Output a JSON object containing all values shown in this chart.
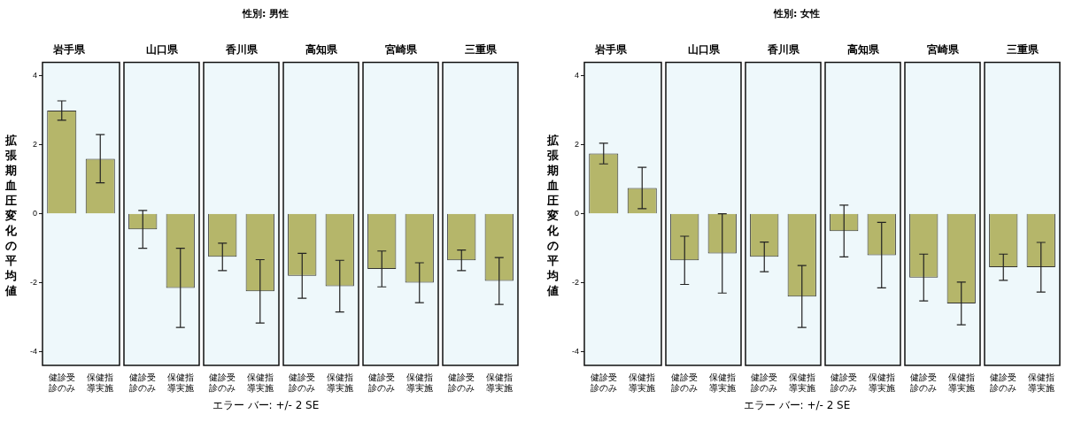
{
  "chart_data": [
    {
      "type": "bar",
      "title": "岩手県",
      "annotations": [
        "性別: 男性",
        "エラー バー: +/- 2 SE"
      ],
      "ylabel": "拡張期血圧変化の平均値",
      "categories": [
        "健診受診のみ",
        "保健指導実施"
      ],
      "values": [
        3.0,
        1.6
      ],
      "errors": [
        0.28,
        0.7
      ],
      "color": "#b5b66a",
      "ylim": [
        -4.4,
        4.4
      ],
      "yticks": [
        -4,
        -2,
        0,
        2,
        4
      ]
    },
    {
      "type": "bar",
      "title": "山口県",
      "categories": [
        "健診受診のみ",
        "保健指導実施"
      ],
      "values": [
        -0.45,
        -2.15
      ],
      "errors": [
        0.55,
        1.15
      ],
      "color": "#b5b66a",
      "ylim": [
        -4.4,
        4.4
      ],
      "yticks": [
        -4,
        -2,
        0,
        2,
        4
      ],
      "tick_labels": "x"
    },
    {
      "type": "bar",
      "title": "香川県",
      "categories": [
        "健診受診のみ",
        "保健指導実施"
      ],
      "values": [
        -1.25,
        -2.25
      ],
      "errors": [
        0.4,
        0.92
      ],
      "color": "#b5b66a",
      "ylim": [
        -4.4,
        4.4
      ],
      "yticks": [
        -4,
        -2,
        0,
        2,
        4
      ],
      "tick_labels": "x"
    },
    {
      "type": "bar",
      "title": "高知県",
      "categories": [
        "健診受診のみ",
        "保健指導実施"
      ],
      "values": [
        -1.8,
        -2.1
      ],
      "errors": [
        0.65,
        0.75
      ],
      "color": "#b5b66a",
      "ylim": [
        -4.4,
        4.4
      ],
      "yticks": [
        -4,
        -2,
        0,
        2,
        4
      ],
      "tick_labels": "x"
    },
    {
      "type": "bar",
      "title": "宮崎県",
      "categories": [
        "健診受診のみ",
        "保健指導実施"
      ],
      "values": [
        -1.6,
        -2.0
      ],
      "errors": [
        0.52,
        0.58
      ],
      "color": "#b5b66a",
      "ylim": [
        -4.4,
        4.4
      ],
      "yticks": [
        -4,
        -2,
        0,
        2,
        4
      ],
      "tick_labels": "x"
    },
    {
      "type": "bar",
      "title": "三重県",
      "categories": [
        "健診受診のみ",
        "保健指導実施"
      ],
      "values": [
        -1.35,
        -1.95
      ],
      "errors": [
        0.3,
        0.68
      ],
      "color": "#b5b66a",
      "ylim": [
        -4.4,
        4.4
      ],
      "yticks": [
        -4,
        -2,
        0,
        2,
        4
      ],
      "tick_labels": "x"
    },
    {
      "type": "bar",
      "title": "岩手県",
      "annotations": [
        "性別: 女性",
        "エラー バー: +/- 2 SE"
      ],
      "ylabel": "拡張期血圧変化の平均値",
      "categories": [
        "健診受診のみ",
        "保健指導実施"
      ],
      "values": [
        1.75,
        0.75
      ],
      "errors": [
        0.3,
        0.6
      ],
      "color": "#b5b66a",
      "ylim": [
        -4.4,
        4.4
      ],
      "yticks": [
        -4,
        -2,
        0,
        2,
        4
      ]
    },
    {
      "type": "bar",
      "title": "山口県",
      "categories": [
        "健診受診のみ",
        "保健指導実施"
      ],
      "values": [
        -1.35,
        -1.15
      ],
      "errors": [
        0.7,
        1.15
      ],
      "color": "#b5b66a",
      "ylim": [
        -4.4,
        4.4
      ],
      "yticks": [
        -4,
        -2,
        0,
        2,
        4
      ],
      "tick_labels": "x"
    },
    {
      "type": "bar",
      "title": "香川県",
      "categories": [
        "健診受診のみ",
        "保健指導実施"
      ],
      "values": [
        -1.25,
        -2.4
      ],
      "errors": [
        0.43,
        0.9
      ],
      "color": "#b5b66a",
      "ylim": [
        -4.4,
        4.4
      ],
      "yticks": [
        -4,
        -2,
        0,
        2,
        4
      ],
      "tick_labels": "x"
    },
    {
      "type": "bar",
      "title": "高知県",
      "categories": [
        "健診受診のみ",
        "保健指導実施"
      ],
      "values": [
        -0.5,
        -1.2
      ],
      "errors": [
        0.75,
        0.95
      ],
      "color": "#b5b66a",
      "ylim": [
        -4.4,
        4.4
      ],
      "yticks": [
        -4,
        -2,
        0,
        2,
        4
      ],
      "tick_labels": "x"
    },
    {
      "type": "bar",
      "title": "宮崎県",
      "categories": [
        "健診受診のみ",
        "保健指導実施"
      ],
      "values": [
        -1.85,
        -2.6
      ],
      "errors": [
        0.68,
        0.62
      ],
      "color": "#b5b66a",
      "ylim": [
        -4.4,
        4.4
      ],
      "yticks": [
        -4,
        -2,
        0,
        2,
        4
      ],
      "tick_labels": "x"
    },
    {
      "type": "bar",
      "title": "三重県",
      "categories": [
        "健診受診のみ",
        "保健指導実施"
      ],
      "values": [
        -1.55,
        -1.55
      ],
      "errors": [
        0.38,
        0.72
      ],
      "color": "#b5b66a",
      "ylim": [
        -4.4,
        4.4
      ],
      "yticks": [
        -4,
        -2,
        0,
        2,
        4
      ],
      "tick_labels": "x"
    }
  ]
}
